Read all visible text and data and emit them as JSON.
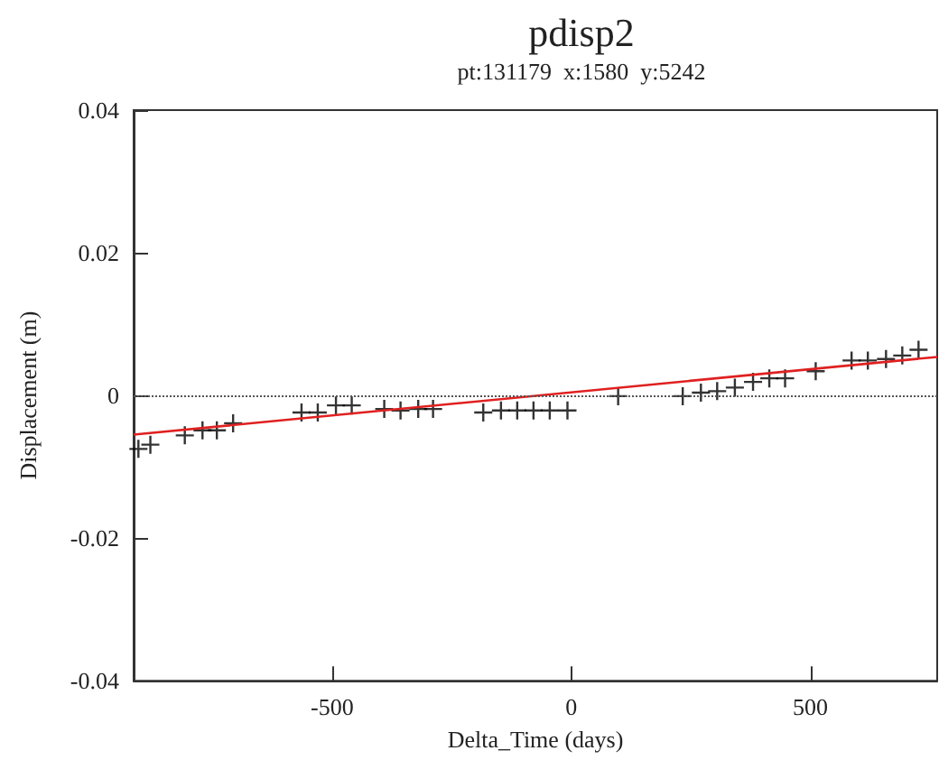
{
  "chart_data": {
    "type": "scatter",
    "title": "pdisp2",
    "subtitle": "pt:131179  x:1580  y:5242",
    "xlabel": "Delta_Time (days)",
    "ylabel": "Displacement (m)",
    "xlim": [
      -915,
      765
    ],
    "ylim": [
      -0.04,
      0.04
    ],
    "xticks": [
      -500,
      0,
      500
    ],
    "yticks": [
      -0.04,
      -0.02,
      0,
      0.02,
      0.04
    ],
    "grid": false,
    "marker": "cross",
    "series": [
      {
        "color": "#000000",
        "x": [
          -905,
          -880,
          -808,
          -771,
          -741,
          -707,
          -564,
          -530,
          -492,
          -459,
          -391,
          -357,
          -320,
          -289,
          -184,
          -147,
          -113,
          -79,
          -45,
          -8,
          98,
          233,
          271,
          305,
          342,
          380,
          414,
          447,
          511,
          586,
          620,
          658,
          692,
          726
        ],
        "values": [
          -0.0075,
          -0.0069,
          -0.0056,
          -0.0049,
          -0.0049,
          -0.0039,
          -0.0024,
          -0.0024,
          -0.0014,
          -0.0014,
          -0.0019,
          -0.0021,
          -0.0019,
          -0.0019,
          -0.0024,
          -0.0021,
          -0.0021,
          -0.0021,
          -0.0021,
          -0.0021,
          -0.0001,
          -0.0001,
          0.0004,
          0.0006,
          0.0011,
          0.0019,
          0.0024,
          0.0024,
          0.0034,
          0.0049,
          0.0049,
          0.0051,
          0.0056,
          0.0064
        ]
      },
      {
        "type": "line",
        "color": "#e02020",
        "x": [
          -915,
          765
        ],
        "values": [
          -0.0055,
          0.0054
        ],
        "marker": "none",
        "line_style": "solid"
      }
    ],
    "ref_lines": [
      {
        "axis": "y",
        "value": 0,
        "color": "#555555",
        "line_style": "dotted"
      }
    ]
  }
}
